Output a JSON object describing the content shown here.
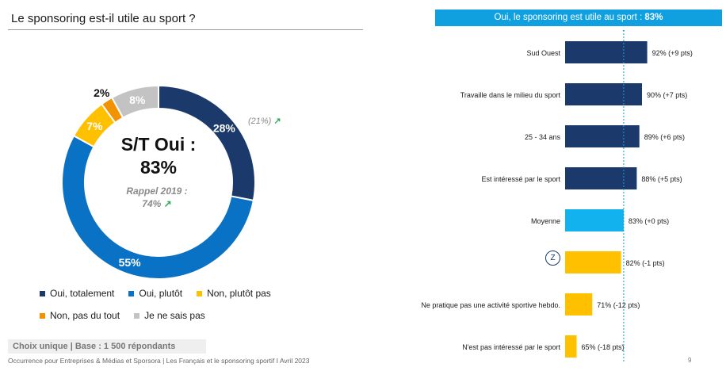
{
  "title": "Le sponsoring est-il utile au sport ?",
  "colors": {
    "oui_totalement": "#1b3a6b",
    "oui_plutot": "#0a72c4",
    "non_plutot_pas": "#ffc000",
    "non_pas_du_tout": "#f39200",
    "je_ne_sais_pas": "#c3c3c3",
    "moyenne": "#12b2ee",
    "reference_line": "#12a0d8"
  },
  "donut": {
    "center_line1": "S/T Oui :",
    "center_line2": "83%",
    "rappel_line1": "Rappel 2019 :",
    "rappel_line2": "74%",
    "rappel_side": "(21%)",
    "arrow": "↗"
  },
  "legend": [
    {
      "label": "Oui, totalement",
      "color": "#1b3a6b"
    },
    {
      "label": "Oui, plutôt",
      "color": "#0a72c4"
    },
    {
      "label": "Non, plutôt pas",
      "color": "#ffc000"
    },
    {
      "label": "Non, pas du tout",
      "color": "#f39200"
    },
    {
      "label": "Je ne sais pas",
      "color": "#c3c3c3"
    }
  ],
  "headline_prefix": "Oui, le sponsoring est utile au sport : ",
  "headline_value": "83%",
  "base_text": "Choix unique | Base : 1 500 répondants",
  "source_text": "Occurrence pour Entreprises & Médias et Sporsora | Les Français et le sponsoring sportif I Avril 2023",
  "page_number": "9",
  "z_icon_label": "Z",
  "chart_data": [
    {
      "type": "pie",
      "categories": [
        "Oui, totalement",
        "Oui, plutôt",
        "Non, plutôt pas",
        "Non, pas du tout",
        "Je ne sais pas"
      ],
      "values": [
        28,
        55,
        7,
        2,
        8
      ],
      "labels": [
        "28%",
        "55%",
        "7%",
        "2%",
        "8%"
      ],
      "colors": [
        "#1b3a6b",
        "#0a72c4",
        "#ffc000",
        "#f39200",
        "#c3c3c3"
      ],
      "label_colors": [
        "#ffffff",
        "#ffffff",
        "#ffffff",
        "#111111",
        "#ffffff"
      ]
    },
    {
      "type": "bar",
      "orientation": "horizontal",
      "categories": [
        "Sud Ouest",
        "Travaille dans le milieu du sport",
        "25 - 34 ans",
        "Est intéressé par le sport",
        "Moyenne",
        "",
        "Ne pratique pas une activité sportive hebdo.",
        "N'est pas intéressé par le sport"
      ],
      "values": [
        92,
        90,
        89,
        88,
        83,
        82,
        71,
        65
      ],
      "value_labels": [
        "92% (+9 pts)",
        "90% (+7 pts)",
        "89% (+6 pts)",
        "88% (+5 pts)",
        "83% (+0 pts)",
        "82% (-1 pts)",
        "71% (-12 pts)",
        "65% (-18 pts)"
      ],
      "colors": [
        "#1b3a6b",
        "#1b3a6b",
        "#1b3a6b",
        "#1b3a6b",
        "#12b2ee",
        "#ffc000",
        "#ffc000",
        "#ffc000"
      ],
      "reference_value": 83,
      "xlim": [
        0,
        100
      ]
    }
  ]
}
